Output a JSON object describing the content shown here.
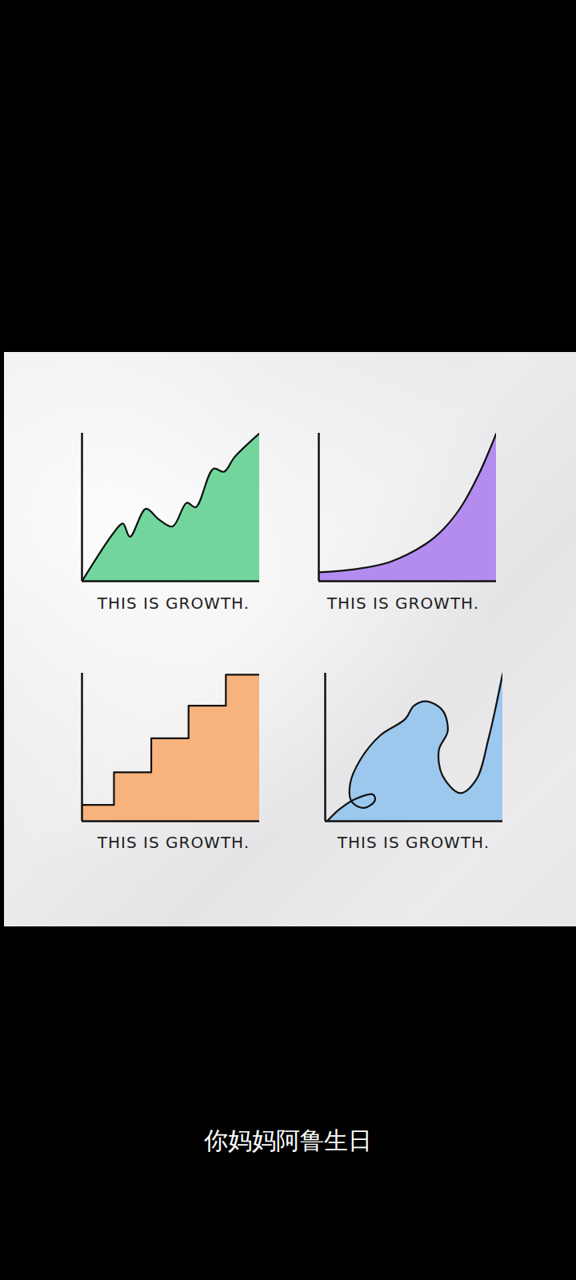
{
  "chart_data": [
    {
      "type": "area",
      "title": "THIS IS GROWTH.",
      "color": "#72d69c",
      "tick_labels": false,
      "xlim": [
        0,
        10
      ],
      "ylim": [
        0,
        10
      ],
      "x": [
        0,
        1.8,
        2.3,
        2.7,
        3.6,
        4.3,
        5.1,
        5.9,
        6.4,
        7.4,
        8.0,
        8.6,
        10
      ],
      "values": [
        0,
        3.3,
        3.9,
        3.0,
        4.9,
        4.2,
        3.7,
        5.3,
        5.0,
        7.6,
        7.4,
        8.4,
        10
      ]
    },
    {
      "type": "area",
      "title": "THIS IS GROWTH.",
      "color": "#b48cf0",
      "tick_labels": false,
      "xlim": [
        0,
        10
      ],
      "ylim": [
        0,
        10
      ],
      "x": [
        0,
        2,
        4,
        6,
        7,
        8,
        9,
        10
      ],
      "values": [
        0.6,
        0.8,
        1.3,
        2.5,
        3.5,
        5.0,
        7.2,
        10
      ]
    },
    {
      "type": "step",
      "title": "THIS IS GROWTH.",
      "color": "#f8b27c",
      "tick_labels": false,
      "xlim": [
        0,
        10
      ],
      "ylim": [
        0,
        10
      ],
      "x": [
        0,
        1.8,
        3.9,
        6.0,
        8.1,
        10
      ],
      "values": [
        1.1,
        3.3,
        5.6,
        7.8,
        9.9,
        9.9
      ]
    },
    {
      "type": "path",
      "title": "THIS IS GROWTH.",
      "color": "#9cc8ee",
      "tick_labels": false,
      "xlim": [
        0,
        10
      ],
      "ylim": [
        0,
        10
      ],
      "x": [
        0.1,
        0.8,
        1.7,
        2.7,
        2.8,
        2.2,
        1.5,
        1.4,
        2.0,
        3.1,
        4.5,
        5.0,
        5.7,
        6.6,
        6.9,
        6.4,
        6.6,
        7.6,
        8.5,
        9.2,
        10
      ],
      "values": [
        0,
        0.8,
        1.5,
        1.8,
        1.4,
        0.9,
        1.3,
        2.5,
        4.2,
        5.8,
        6.9,
        7.8,
        8.1,
        7.5,
        6.1,
        4.8,
        3.1,
        1.9,
        2.8,
        5.6,
        10
      ]
    }
  ],
  "caption": "你妈妈阿鲁生日"
}
